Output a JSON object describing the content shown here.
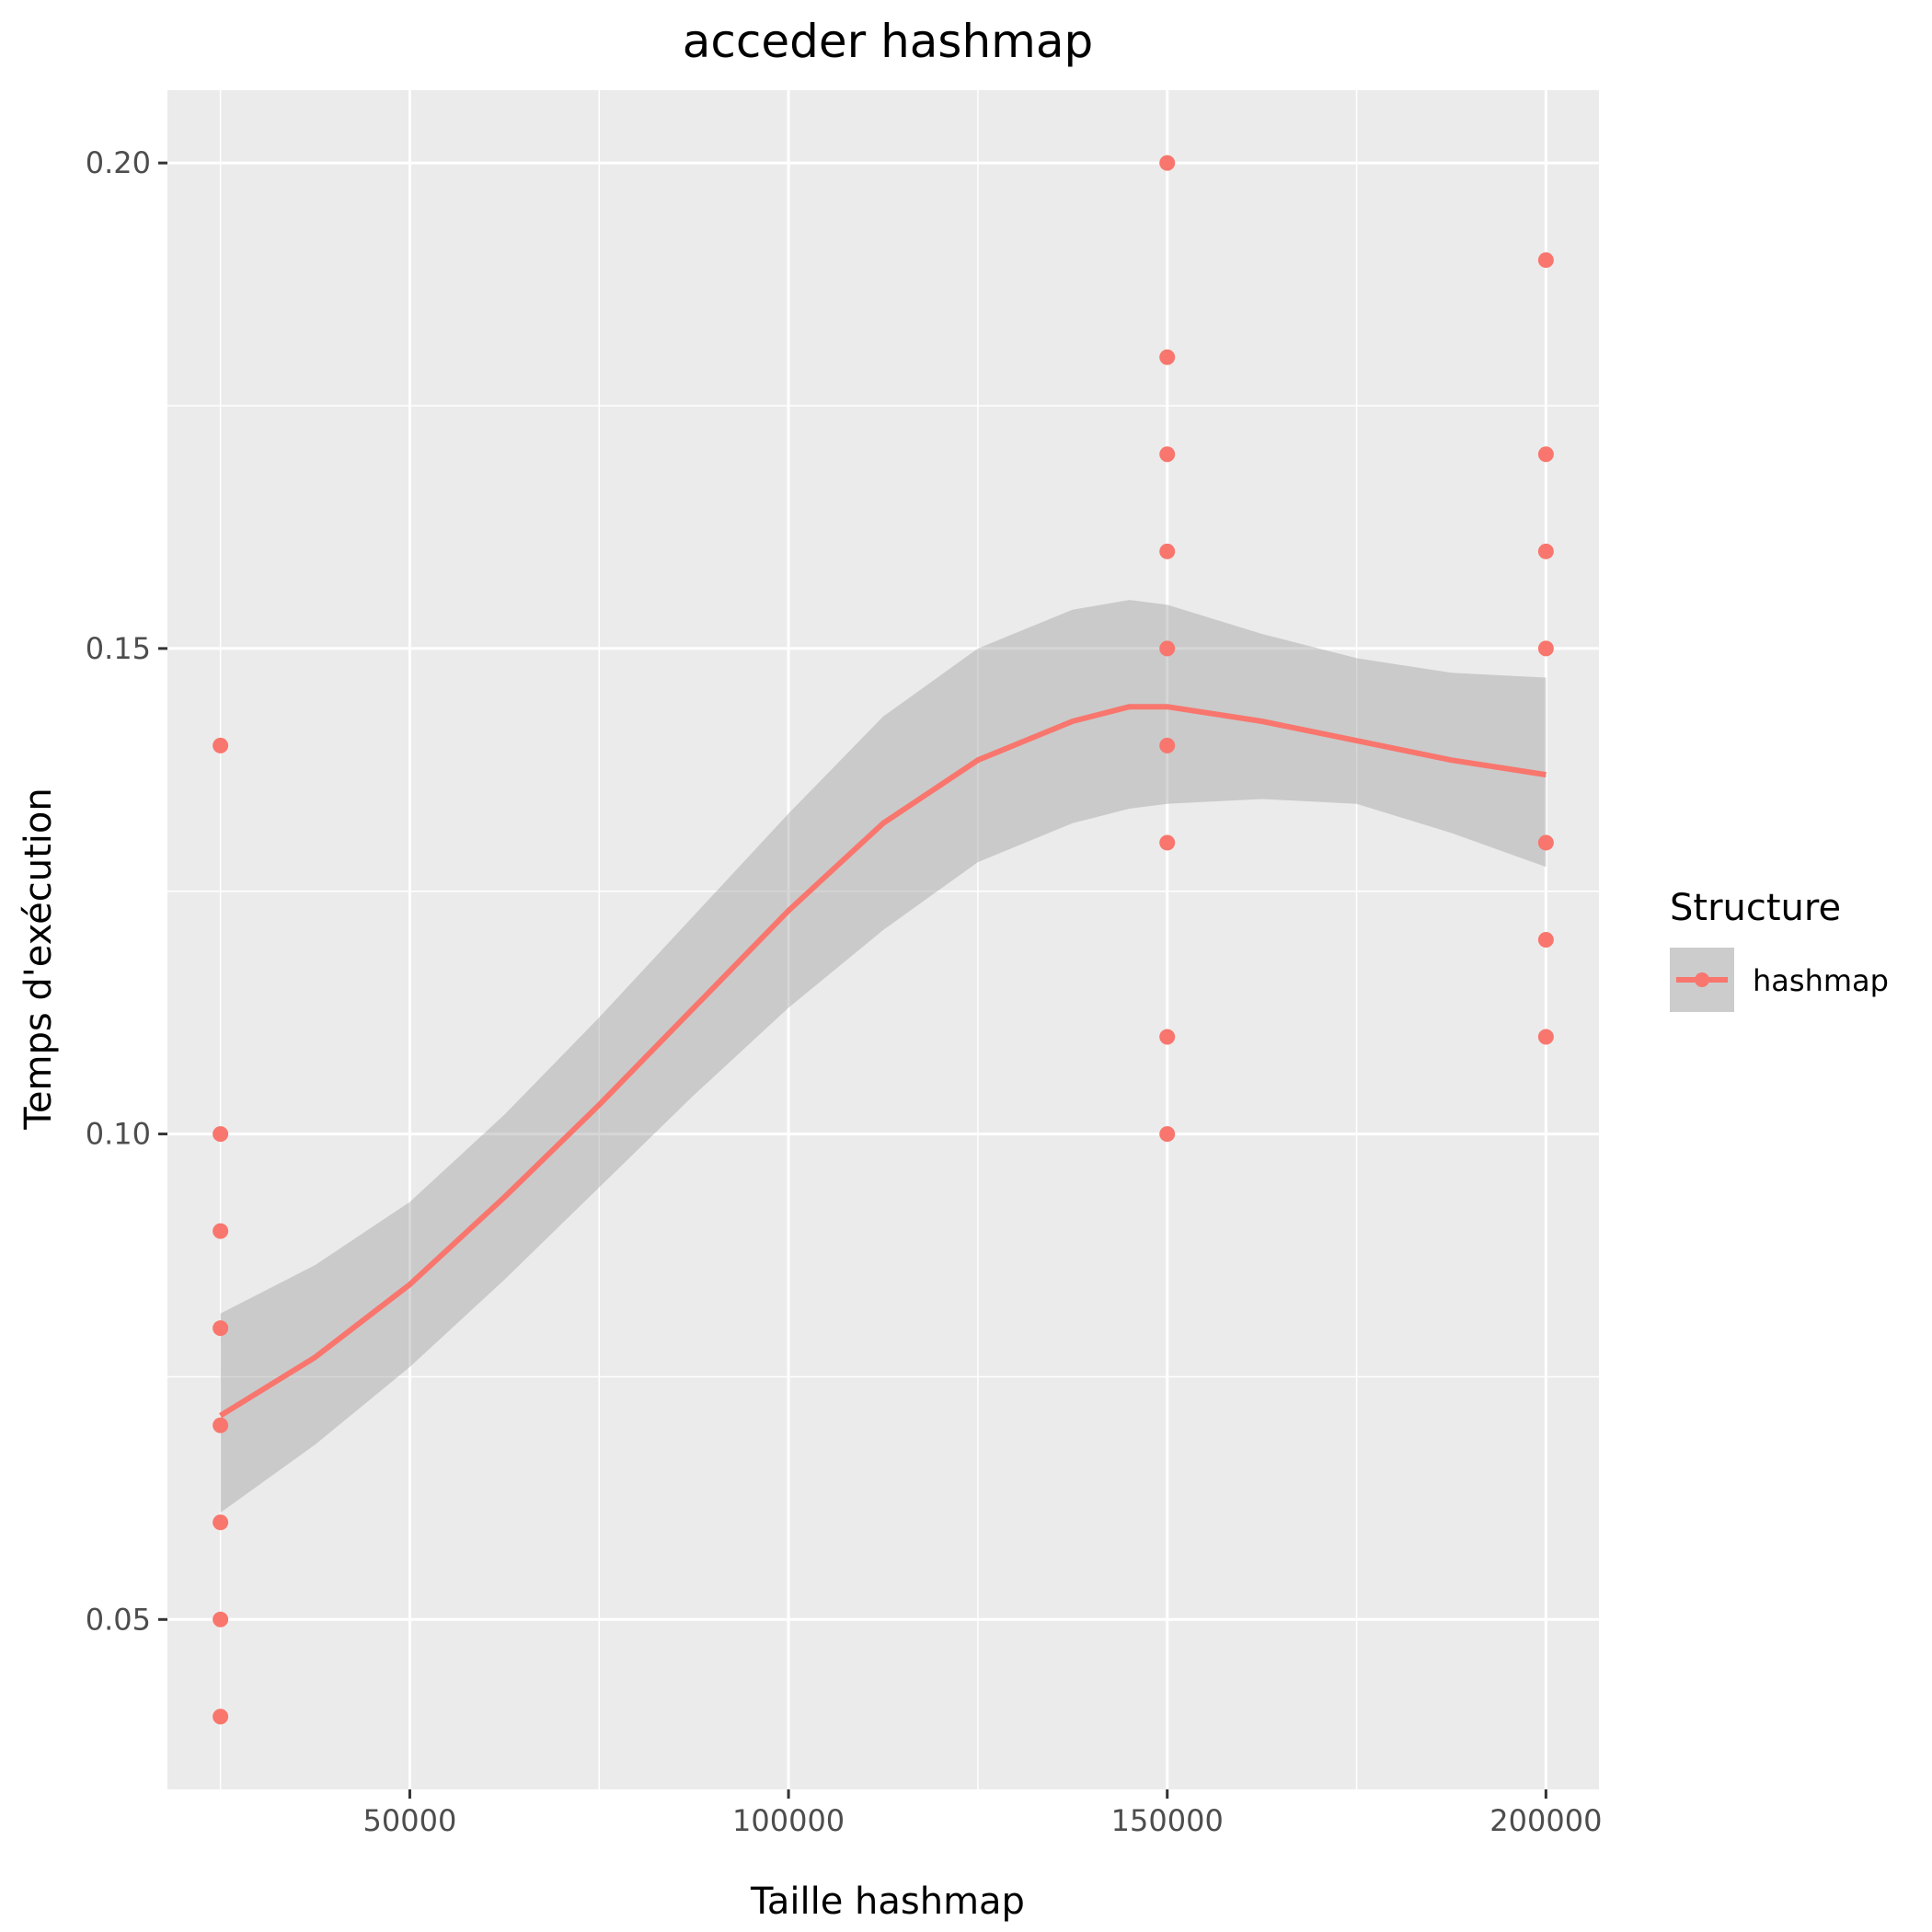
{
  "chart_data": {
    "type": "scatter",
    "title": "acceder hashmap",
    "xlabel": "Taille hashmap",
    "ylabel": "Temps d'exécution",
    "xlim": [
      18000,
      207000
    ],
    "ylim": [
      0.0325,
      0.2075
    ],
    "x_ticks": [
      50000,
      100000,
      150000,
      200000
    ],
    "x_tick_labels": [
      "50000",
      "100000",
      "150000",
      "200000"
    ],
    "y_ticks": [
      0.05,
      0.1,
      0.15,
      0.2
    ],
    "y_tick_labels": [
      "0.05",
      "0.10",
      "0.15",
      "0.20"
    ],
    "grid": true,
    "legend": {
      "title": "Structure",
      "position": "right",
      "entries": [
        "hashmap"
      ]
    },
    "colors": {
      "series": "#f8766d",
      "ribbon": "#999999",
      "panel": "#ebebeb",
      "grid": "#ffffff"
    },
    "series": [
      {
        "name": "hashmap",
        "points": [
          {
            "x": 25000,
            "y": 0.14
          },
          {
            "x": 25000,
            "y": 0.1
          },
          {
            "x": 25000,
            "y": 0.09
          },
          {
            "x": 25000,
            "y": 0.08
          },
          {
            "x": 25000,
            "y": 0.07
          },
          {
            "x": 25000,
            "y": 0.06
          },
          {
            "x": 25000,
            "y": 0.05
          },
          {
            "x": 25000,
            "y": 0.04
          },
          {
            "x": 150000,
            "y": 0.2
          },
          {
            "x": 150000,
            "y": 0.18
          },
          {
            "x": 150000,
            "y": 0.17
          },
          {
            "x": 150000,
            "y": 0.16
          },
          {
            "x": 150000,
            "y": 0.15
          },
          {
            "x": 150000,
            "y": 0.14
          },
          {
            "x": 150000,
            "y": 0.13
          },
          {
            "x": 150000,
            "y": 0.11
          },
          {
            "x": 150000,
            "y": 0.1
          },
          {
            "x": 200000,
            "y": 0.19
          },
          {
            "x": 200000,
            "y": 0.17
          },
          {
            "x": 200000,
            "y": 0.16
          },
          {
            "x": 200000,
            "y": 0.15
          },
          {
            "x": 200000,
            "y": 0.13
          },
          {
            "x": 200000,
            "y": 0.12
          },
          {
            "x": 200000,
            "y": 0.11
          }
        ],
        "smooth": {
          "x": [
            25000,
            37500,
            50000,
            62500,
            75000,
            87500,
            100000,
            112500,
            125000,
            137500,
            145000,
            150000,
            162500,
            175000,
            187500,
            200000
          ],
          "y": [
            0.071,
            0.077,
            0.0845,
            0.0935,
            0.103,
            0.113,
            0.123,
            0.132,
            0.1385,
            0.1425,
            0.144,
            0.144,
            0.1425,
            0.1405,
            0.1385,
            0.137
          ],
          "lower": [
            0.061,
            0.068,
            0.076,
            0.085,
            0.0945,
            0.104,
            0.113,
            0.121,
            0.128,
            0.132,
            0.1335,
            0.134,
            0.1345,
            0.134,
            0.131,
            0.1275
          ],
          "upper": [
            0.0815,
            0.0865,
            0.093,
            0.102,
            0.112,
            0.1225,
            0.133,
            0.143,
            0.15,
            0.154,
            0.155,
            0.1545,
            0.1515,
            0.149,
            0.1475,
            0.147
          ]
        }
      }
    ]
  }
}
